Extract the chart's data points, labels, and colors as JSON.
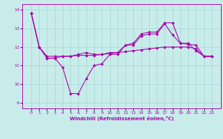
{
  "xlabel": "Windchill (Refroidissement éolien,°C)",
  "background_color": "#c8ecea",
  "grid_color": "#a8d8d8",
  "line_color": "#aa00aa",
  "x": [
    0,
    1,
    2,
    3,
    4,
    5,
    6,
    7,
    8,
    9,
    10,
    11,
    12,
    13,
    14,
    15,
    16,
    17,
    18,
    19,
    20,
    21,
    22,
    23
  ],
  "line1": [
    13.8,
    12.0,
    11.4,
    11.4,
    10.9,
    9.5,
    9.5,
    10.3,
    11.0,
    11.1,
    11.6,
    11.6,
    12.1,
    12.2,
    12.7,
    12.8,
    12.8,
    13.3,
    13.3,
    12.2,
    12.2,
    11.8,
    11.5,
    11.5
  ],
  "line2": [
    13.8,
    12.0,
    11.5,
    11.5,
    11.5,
    11.5,
    11.55,
    11.55,
    11.55,
    11.6,
    11.65,
    11.7,
    11.75,
    11.8,
    11.85,
    11.9,
    11.95,
    12.0,
    12.0,
    12.0,
    12.0,
    11.9,
    11.5,
    11.5
  ],
  "line3": [
    13.8,
    12.0,
    11.4,
    11.4,
    11.5,
    11.5,
    11.6,
    11.7,
    11.6,
    11.6,
    11.7,
    11.7,
    12.1,
    12.1,
    12.6,
    12.7,
    12.7,
    13.25,
    12.65,
    12.2,
    12.15,
    12.1,
    11.5,
    11.5
  ],
  "ylim": [
    8.7,
    14.3
  ],
  "yticks": [
    9,
    10,
    11,
    12,
    13,
    14
  ],
  "xticks": [
    0,
    1,
    2,
    3,
    4,
    5,
    6,
    7,
    8,
    9,
    10,
    11,
    12,
    13,
    14,
    15,
    16,
    17,
    18,
    19,
    20,
    21,
    22,
    23
  ]
}
